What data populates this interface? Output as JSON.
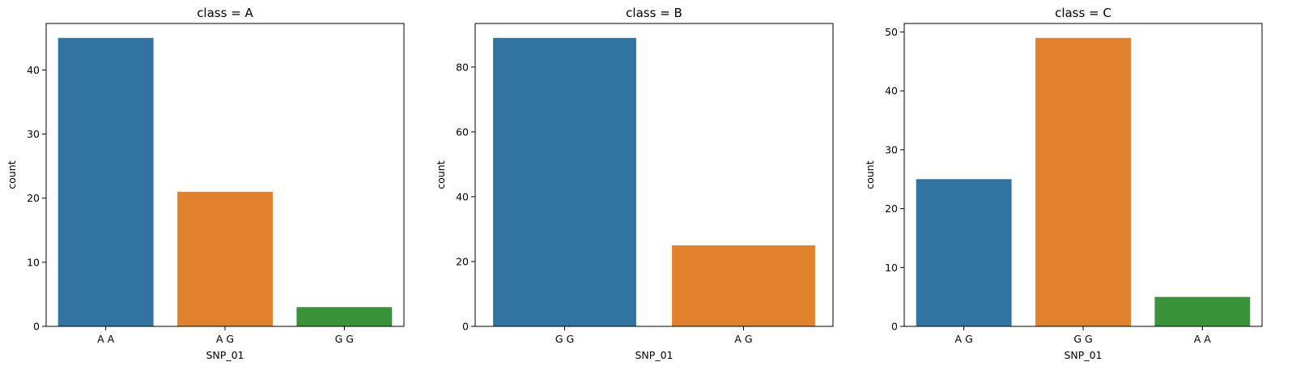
{
  "chart_data": [
    {
      "type": "bar",
      "title": "class = A",
      "xlabel": "SNP_01",
      "ylabel": "count",
      "categories": [
        "A A",
        "A G",
        "G G"
      ],
      "values": [
        45,
        21,
        3
      ],
      "colors": [
        "#3274a1",
        "#e1812c",
        "#3a923a"
      ],
      "ylim": [
        0,
        47.25
      ],
      "yticks": [
        0,
        10,
        20,
        30,
        40
      ],
      "grid": false
    },
    {
      "type": "bar",
      "title": "class = B",
      "xlabel": "SNP_01",
      "ylabel": "count",
      "categories": [
        "G G",
        "A G"
      ],
      "values": [
        89,
        25
      ],
      "colors": [
        "#3274a1",
        "#e1812c"
      ],
      "ylim": [
        0,
        93.45
      ],
      "yticks": [
        0,
        20,
        40,
        60,
        80
      ],
      "grid": false
    },
    {
      "type": "bar",
      "title": "class = C",
      "xlabel": "SNP_01",
      "ylabel": "count",
      "categories": [
        "A G",
        "G G",
        "A A"
      ],
      "values": [
        25,
        49,
        5
      ],
      "colors": [
        "#3274a1",
        "#e1812c",
        "#3a923a"
      ],
      "ylim": [
        0,
        51.45
      ],
      "yticks": [
        0,
        10,
        20,
        30,
        40,
        50
      ],
      "grid": false
    }
  ]
}
